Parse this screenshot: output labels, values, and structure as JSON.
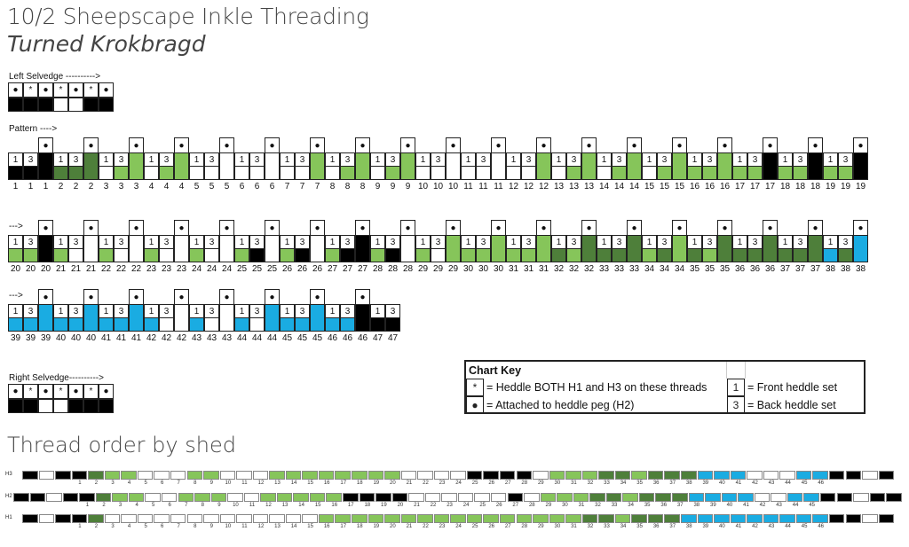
{
  "title": "10/2 Sheepscape Inkle Threading",
  "subtitle": "Turned Krokbragd",
  "palette": {
    "K": "#000000",
    "D": "#4e7f3a",
    "L": "#86c55a",
    "B": "#1aace2",
    "W": "#ffffff"
  },
  "left_selvedge": {
    "label": "Left Selvedge ---------->",
    "symbols": [
      "●",
      "*",
      "●",
      "*",
      "●",
      "*",
      "●"
    ],
    "colors": [
      "K",
      "K",
      "K",
      "W",
      "W",
      "K",
      "K"
    ]
  },
  "right_selvedge": {
    "label": "Right Selvedge---------->",
    "symbols": [
      "●",
      "*",
      "●",
      "*",
      "●",
      "*",
      "●"
    ],
    "colors": [
      "K",
      "K",
      "W",
      "W",
      "K",
      "K",
      "K"
    ]
  },
  "pattern": {
    "label": "Pattern ---->",
    "continue_label": "--->",
    "h1_label": "1",
    "h3_label": "3",
    "peg_symbol": "●",
    "rows": [
      [
        [
          1,
          "K",
          "K",
          "K"
        ],
        [
          2,
          "D",
          "D",
          "D"
        ],
        [
          3,
          "W",
          "L",
          "L"
        ],
        [
          4,
          "W",
          "L",
          "L"
        ],
        [
          5,
          "W",
          "W",
          "W"
        ],
        [
          6,
          "W",
          "W",
          "W"
        ],
        [
          7,
          "W",
          "W",
          "L"
        ],
        [
          8,
          "W",
          "L",
          "L"
        ],
        [
          9,
          "W",
          "L",
          "L"
        ],
        [
          10,
          "W",
          "W",
          "W"
        ],
        [
          11,
          "W",
          "W",
          "W"
        ],
        [
          12,
          "W",
          "W",
          "L"
        ],
        [
          13,
          "W",
          "L",
          "L"
        ],
        [
          14,
          "W",
          "L",
          "L"
        ],
        [
          15,
          "W",
          "L",
          "L"
        ],
        [
          16,
          "L",
          "L",
          "L"
        ],
        [
          17,
          "L",
          "L",
          "K"
        ],
        [
          18,
          "L",
          "L",
          "K"
        ],
        [
          19,
          "L",
          "L",
          "K"
        ]
      ],
      [
        [
          20,
          "L",
          "L",
          "K"
        ],
        [
          21,
          "L",
          "W",
          "W"
        ],
        [
          22,
          "L",
          "W",
          "W"
        ],
        [
          23,
          "L",
          "W",
          "W"
        ],
        [
          24,
          "L",
          "W",
          "W"
        ],
        [
          25,
          "L",
          "K",
          "W"
        ],
        [
          26,
          "L",
          "K",
          "W"
        ],
        [
          27,
          "L",
          "K",
          "K"
        ],
        [
          28,
          "L",
          "K",
          "W"
        ],
        [
          29,
          "L",
          "W",
          "L"
        ],
        [
          30,
          "L",
          "L",
          "L"
        ],
        [
          31,
          "L",
          "L",
          "L"
        ],
        [
          32,
          "D",
          "L",
          "D"
        ],
        [
          33,
          "D",
          "D",
          "D"
        ],
        [
          34,
          "L",
          "D",
          "L"
        ],
        [
          35,
          "D",
          "L",
          "D"
        ],
        [
          36,
          "D",
          "D",
          "D"
        ],
        [
          37,
          "D",
          "D",
          "D"
        ],
        [
          38,
          "B",
          "D",
          "B"
        ]
      ],
      [
        [
          39,
          "B",
          "B",
          "B"
        ],
        [
          40,
          "B",
          "B",
          "B"
        ],
        [
          41,
          "B",
          "B",
          "B"
        ],
        [
          42,
          "B",
          "W",
          "W"
        ],
        [
          43,
          "B",
          "W",
          "W"
        ],
        [
          44,
          "B",
          "W",
          "B"
        ],
        [
          45,
          "B",
          "B",
          "B"
        ],
        [
          46,
          "B",
          "B",
          "K"
        ],
        [
          47,
          "K",
          "K",
          null
        ]
      ]
    ]
  },
  "chart_key": {
    "title": "Chart Key",
    "items": [
      {
        "symbol": "*",
        "text": "= Heddle BOTH H1 and H3 on these threads"
      },
      {
        "symbol": "●",
        "text": "= Attached to heddle peg (H2)"
      },
      {
        "symbol": "1",
        "text": "= Front heddle set"
      },
      {
        "symbol": "3",
        "text": "= Back heddle set"
      }
    ]
  },
  "thread_order": {
    "title": "Thread order by shed",
    "sheds": [
      "H3",
      "H2",
      "H1"
    ]
  }
}
